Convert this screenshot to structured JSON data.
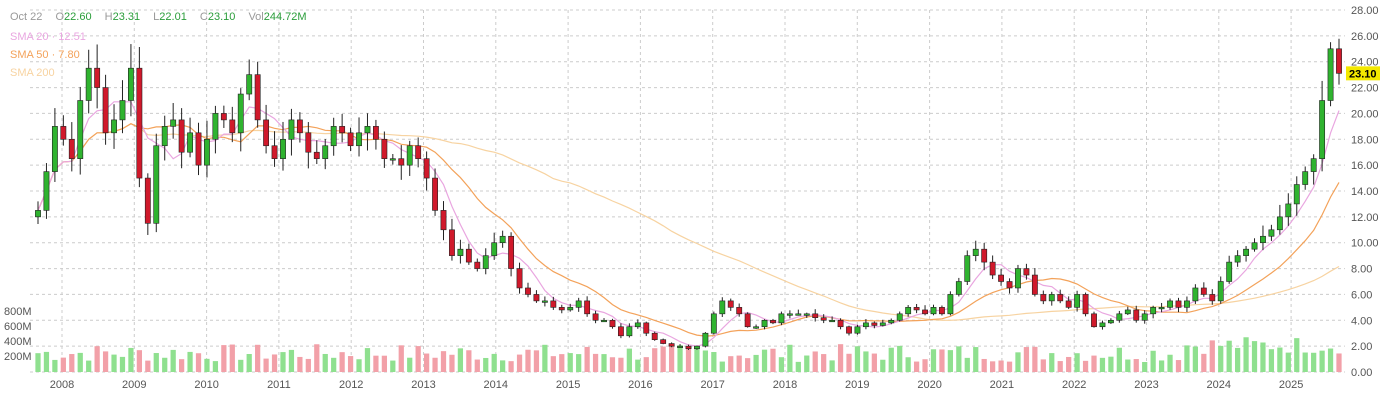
{
  "header": {
    "date": "Oct 22",
    "open_label": "O",
    "open": "22.60",
    "high_label": "H",
    "high": "23.31",
    "low_label": "L",
    "low": "22.01",
    "close_label": "C",
    "close": "23.10",
    "vol_label": "Vol",
    "vol": "244.72M"
  },
  "sma": [
    {
      "label": "SMA 20 · 12.51",
      "color": "#e9a6e0"
    },
    {
      "label": "SMA 50 · 7.80",
      "color": "#f3a25a"
    },
    {
      "label": "SMA 200",
      "color": "#f7d3a1"
    }
  ],
  "last_price_label": "23.10",
  "colors": {
    "up": "#2fb32f",
    "down": "#d0192b",
    "vol_up": "#8fe08f",
    "vol_down": "#f2a0a8",
    "grid": "#cccccc"
  },
  "chart_data": {
    "type": "candlestick",
    "y_axis": {
      "ticks": [
        "0.00",
        "2.00",
        "4.00",
        "6.00",
        "8.00",
        "10.00",
        "12.00",
        "14.00",
        "16.00",
        "18.00",
        "20.00",
        "22.00",
        "24.00",
        "26.00",
        "28.00"
      ],
      "range": [
        0,
        28
      ]
    },
    "volume_axis": {
      "ticks": [
        "200M",
        "400M",
        "600M",
        "800M"
      ]
    },
    "x_axis": {
      "ticks": [
        "2008",
        "2009",
        "2010",
        "2011",
        "2012",
        "2013",
        "2014",
        "2015",
        "2016",
        "2017",
        "2018",
        "2019",
        "2020",
        "2021",
        "2022",
        "2023",
        "2024",
        "2025"
      ]
    },
    "close": [
      12.5,
      15.5,
      19.0,
      18.0,
      16.5,
      21.0,
      23.5,
      22.0,
      18.5,
      19.5,
      21.0,
      23.5,
      15.0,
      11.5,
      17.5,
      19.0,
      19.5,
      17.0,
      18.5,
      16.0,
      18.0,
      20.0,
      19.5,
      18.5,
      21.5,
      23.0,
      19.5,
      17.5,
      16.5,
      18.0,
      19.5,
      18.5,
      17.0,
      16.5,
      17.5,
      19.0,
      18.5,
      17.5,
      18.5,
      19.0,
      18.0,
      16.5,
      16.5,
      16.0,
      17.5,
      16.5,
      15.0,
      12.5,
      11.0,
      9.0,
      9.5,
      8.5,
      8.0,
      9.0,
      10.0,
      10.5,
      8.0,
      6.5,
      6.0,
      5.5,
      5.5,
      5.0,
      4.8,
      5.0,
      5.5,
      4.5,
      4.0,
      4.0,
      3.5,
      2.8,
      3.5,
      3.8,
      3.0,
      2.5,
      2.2,
      2.0,
      2.0,
      1.8,
      2.0,
      3.0,
      4.5,
      5.5,
      5.0,
      4.5,
      3.5,
      3.5,
      4.0,
      3.8,
      4.5,
      4.5,
      4.5,
      4.5,
      4.2,
      4.0,
      4.0,
      3.5,
      3.0,
      3.5,
      3.8,
      3.6,
      3.8,
      4.0,
      4.5,
      5.0,
      4.8,
      4.5,
      5.0,
      4.5,
      6.0,
      7.0,
      9.0,
      9.5,
      8.5,
      7.5,
      7.0,
      6.5,
      8.0,
      7.5,
      6.0,
      5.5,
      6.0,
      5.5,
      5.0,
      6.0,
      4.5,
      3.5,
      3.8,
      4.0,
      4.5,
      4.8,
      4.0,
      4.5,
      5.0,
      5.0,
      5.5,
      5.0,
      5.5,
      6.5,
      6.0,
      5.5,
      7.0,
      8.5,
      9.0,
      9.5,
      10.0,
      10.5,
      11.0,
      12.0,
      13.0,
      14.5,
      15.5,
      16.5,
      21.0,
      25.0,
      23.1
    ],
    "series": [
      {
        "name": "SMA 20",
        "value": "12.51"
      },
      {
        "name": "SMA 50",
        "value": "7.80"
      },
      {
        "name": "SMA 200"
      }
    ]
  }
}
